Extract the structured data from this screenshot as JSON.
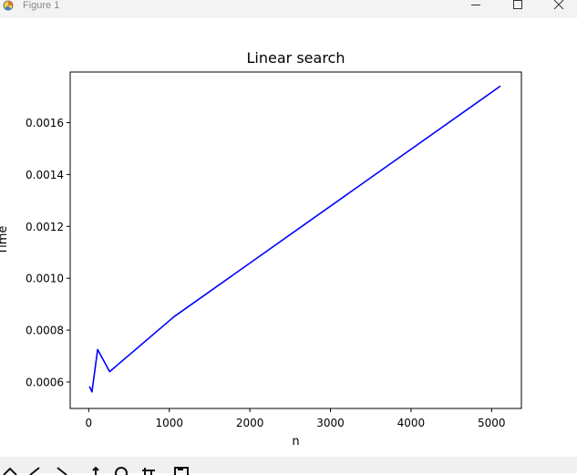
{
  "window": {
    "title": "Figure 1",
    "controls": [
      "minimize",
      "maximize",
      "close"
    ]
  },
  "chart_data": {
    "type": "line",
    "title": "Linear search",
    "xlabel": "n",
    "ylabel": "Time",
    "xlim": [
      -230,
      5370
    ],
    "ylim": [
      0.000498,
      0.001795
    ],
    "xticks": [
      {
        "value": 0,
        "label": "0"
      },
      {
        "value": 1000,
        "label": "1000"
      },
      {
        "value": 2000,
        "label": "2000"
      },
      {
        "value": 3000,
        "label": "3000"
      },
      {
        "value": 4000,
        "label": "4000"
      },
      {
        "value": 5000,
        "label": "5000"
      }
    ],
    "yticks": [
      {
        "value": 0.0006,
        "label": "0.0006"
      },
      {
        "value": 0.0008,
        "label": "0.0008"
      },
      {
        "value": 0.001,
        "label": "0.0010"
      },
      {
        "value": 0.0012,
        "label": "0.0012"
      },
      {
        "value": 0.0014,
        "label": "0.0014"
      },
      {
        "value": 0.0016,
        "label": "0.0016"
      }
    ],
    "grid": false,
    "series": [
      {
        "color": "#0000ff",
        "x": [
          10,
          40,
          110,
          260,
          1060,
          5110
        ],
        "y": [
          0.000583,
          0.000562,
          0.000725,
          0.00064,
          0.000852,
          0.001741
        ]
      }
    ]
  },
  "toolbar": {
    "buttons": [
      "home-icon",
      "back-icon",
      "forward-icon",
      "pan-icon",
      "zoom-icon",
      "subplots-icon",
      "save-icon"
    ]
  }
}
